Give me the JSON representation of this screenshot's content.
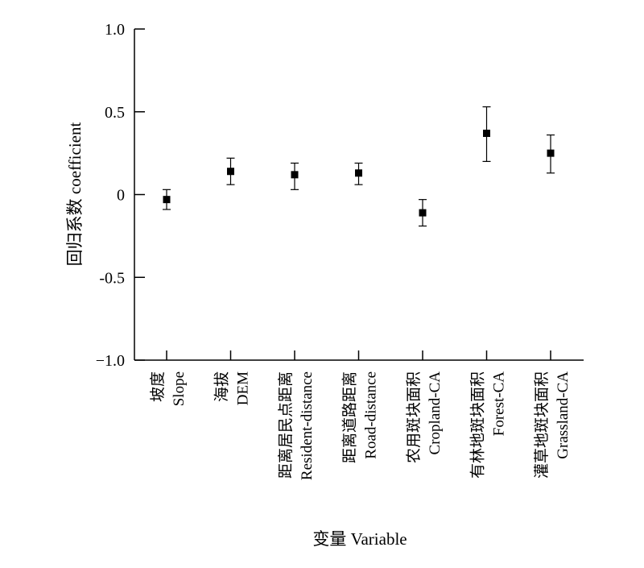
{
  "chart_data": {
    "type": "scatter",
    "title": "",
    "xlabel": "变量 Variable",
    "ylabel": "回归系数 coefficient",
    "ylim": [
      -1.0,
      1.0
    ],
    "yticks": [
      1.0,
      0.5,
      0,
      -0.5,
      -1.0
    ],
    "ytick_labels": [
      "1.0",
      "0.5",
      "0",
      "-0.5",
      "−1.0"
    ],
    "grid": false,
    "legend": "none",
    "marker": "square",
    "error_bars": true,
    "color": "#000000",
    "categories": [
      {
        "zh": "坡度",
        "en": "Slope"
      },
      {
        "zh": "海拔",
        "en": "DEM"
      },
      {
        "zh": "距离居民点距离",
        "en": "Resident-distance"
      },
      {
        "zh": "距离道路距离",
        "en": "Road-distance"
      },
      {
        "zh": "农用斑块面积",
        "en": "Cropland-CA"
      },
      {
        "zh": "有林地斑块面积",
        "en": "Forest-CA"
      },
      {
        "zh": "灌草地斑块面积",
        "en": "Grassland-CA"
      }
    ],
    "values": [
      -0.03,
      0.14,
      0.12,
      0.13,
      -0.11,
      0.37,
      0.25
    ],
    "error_low": [
      -0.09,
      0.06,
      0.03,
      0.06,
      -0.19,
      0.2,
      0.13
    ],
    "error_high": [
      0.03,
      0.22,
      0.19,
      0.19,
      -0.03,
      0.53,
      0.36
    ]
  }
}
